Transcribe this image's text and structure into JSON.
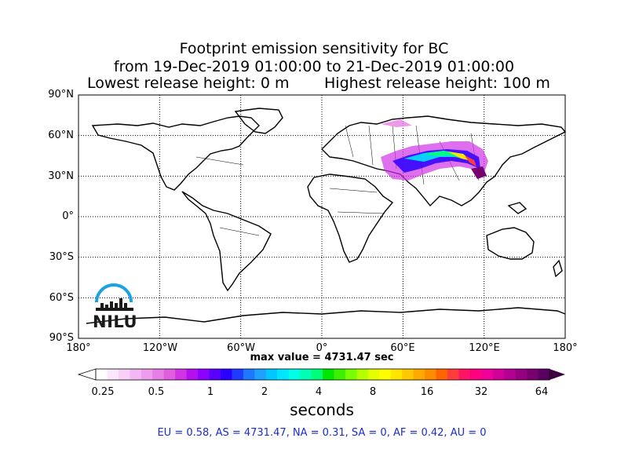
{
  "title": {
    "line1": "Footprint emission sensitivity for BC",
    "line2": "from 19-Dec-2019 01:00:00 to 21-Dec-2019 01:00:00",
    "line3_left": "Lowest release height: 0 m",
    "line3_right": "Highest release height: 100 m"
  },
  "map": {
    "lat_labels": [
      "90°N",
      "60°N",
      "30°N",
      "0°",
      "30°S",
      "60°S",
      "90°S"
    ],
    "lon_labels": [
      "180°",
      "120°W",
      "60°W",
      "0°",
      "60°E",
      "120°E",
      "180°"
    ],
    "gridlines": "dotted",
    "logo_text": "NILU",
    "logo_color": "#1aa3e0"
  },
  "max_value_text": "max value = 4731.47 sec",
  "colorbar": {
    "tick_labels": [
      "0.25",
      "0.5",
      "1",
      "2",
      "4",
      "8",
      "16",
      "32",
      "64"
    ],
    "unit": "seconds",
    "colors": [
      "#ffffff",
      "#fce6fc",
      "#f8d0f8",
      "#f3b8f3",
      "#ee9cee",
      "#e77fe7",
      "#df5fdf",
      "#d133e6",
      "#b30ff0",
      "#8c00ff",
      "#5a00ff",
      "#2a00ff",
      "#1e3cff",
      "#1e78ff",
      "#1ea0ff",
      "#00c8ff",
      "#00e6ff",
      "#00ffe6",
      "#00ffb4",
      "#00ff78",
      "#00e600",
      "#3cf000",
      "#78ff00",
      "#b4ff00",
      "#e6ff00",
      "#ffff00",
      "#ffe600",
      "#ffc800",
      "#ffaa00",
      "#ff8c00",
      "#ff6400",
      "#ff3c3c",
      "#ff1464",
      "#ff0080",
      "#f0009b",
      "#d20096",
      "#b40090",
      "#960080",
      "#780070",
      "#5a0060"
    ]
  },
  "regions_text": "EU = 0.58,  AS = 4731.47,  NA = 0.31,  SA = 0,  AF = 0.42,  AU = 0"
}
